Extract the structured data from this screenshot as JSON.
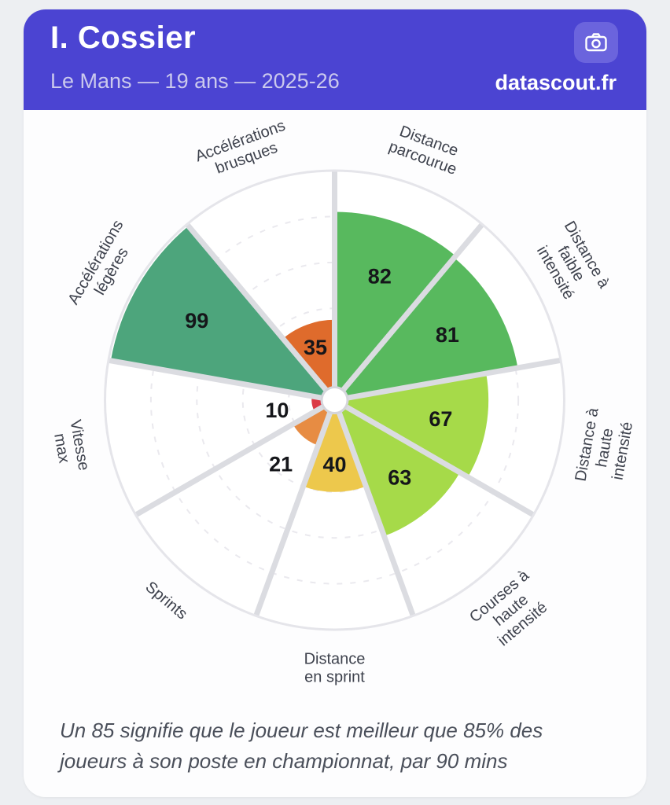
{
  "theme": {
    "page_bg": "#edeff2",
    "card_bg": "#fdfdfe",
    "header_bg": "#4b44d2",
    "button_bg": "#6b64dd",
    "title_color": "#ffffff",
    "subtitle_color": "#cbc9ed",
    "spoke_color": "#dbdce1",
    "ring_color": "#e5e5ea",
    "grid_color": "#eae9ee",
    "hub_stroke": "#d4d5db",
    "value_color": "#15161a",
    "label_color": "#3e424d",
    "footer_color": "#4a4f5a"
  },
  "header": {
    "player_name": "I. Cossier",
    "subtitle": "Le Mans — 19 ans — 2025-26",
    "brand": "datascout.fr",
    "camera_icon": "camera-icon"
  },
  "footer": {
    "note": "Un 85 signifie que le joueur est meilleur que 85% des joueurs à son poste en championnat, par 90 mins"
  },
  "chart_data": {
    "type": "bar",
    "variant": "radial-pizza-percentiles",
    "scale_min": 0,
    "scale_max": 100,
    "gridlines": [
      20,
      40,
      60,
      80
    ],
    "start_angle_deg": 0,
    "sector_span_deg": 40,
    "categories": [
      "Distance parcourue",
      "Distance à faible intensité",
      "Distance à haute intensité",
      "Courses à haute intensité",
      "Distance en sprint",
      "Sprints",
      "Vitesse max",
      "Accélérations légères",
      "Accélérations brusques"
    ],
    "values": [
      82,
      81,
      67,
      63,
      40,
      21,
      10,
      99,
      35
    ],
    "colors": [
      "#58b95e",
      "#58b95e",
      "#a6da49",
      "#a6da49",
      "#edc84c",
      "#e78c43",
      "#db3945",
      "#4da57c",
      "#df6b2c"
    ],
    "slices": [
      {
        "label_lines": [
          "Distance",
          "parcourue"
        ],
        "value": 82,
        "color": "#58b95e"
      },
      {
        "label_lines": [
          "Distance à",
          "faible",
          "intensité"
        ],
        "value": 81,
        "color": "#58b95e"
      },
      {
        "label_lines": [
          "Distance à",
          "haute",
          "intensité"
        ],
        "value": 67,
        "color": "#a6da49"
      },
      {
        "label_lines": [
          "Courses à",
          "haute",
          "intensité"
        ],
        "value": 63,
        "color": "#a6da49"
      },
      {
        "label_lines": [
          "Distance",
          "en sprint"
        ],
        "value": 40,
        "color": "#edc84c"
      },
      {
        "label_lines": [
          "Sprints"
        ],
        "value": 21,
        "color": "#e78c43"
      },
      {
        "label_lines": [
          "Vitesse",
          "max"
        ],
        "value": 10,
        "color": "#db3945"
      },
      {
        "label_lines": [
          "Accélérations",
          "légères"
        ],
        "value": 99,
        "color": "#4da57c"
      },
      {
        "label_lines": [
          "Accélérations",
          "brusques"
        ],
        "value": 35,
        "color": "#df6b2c"
      }
    ]
  }
}
